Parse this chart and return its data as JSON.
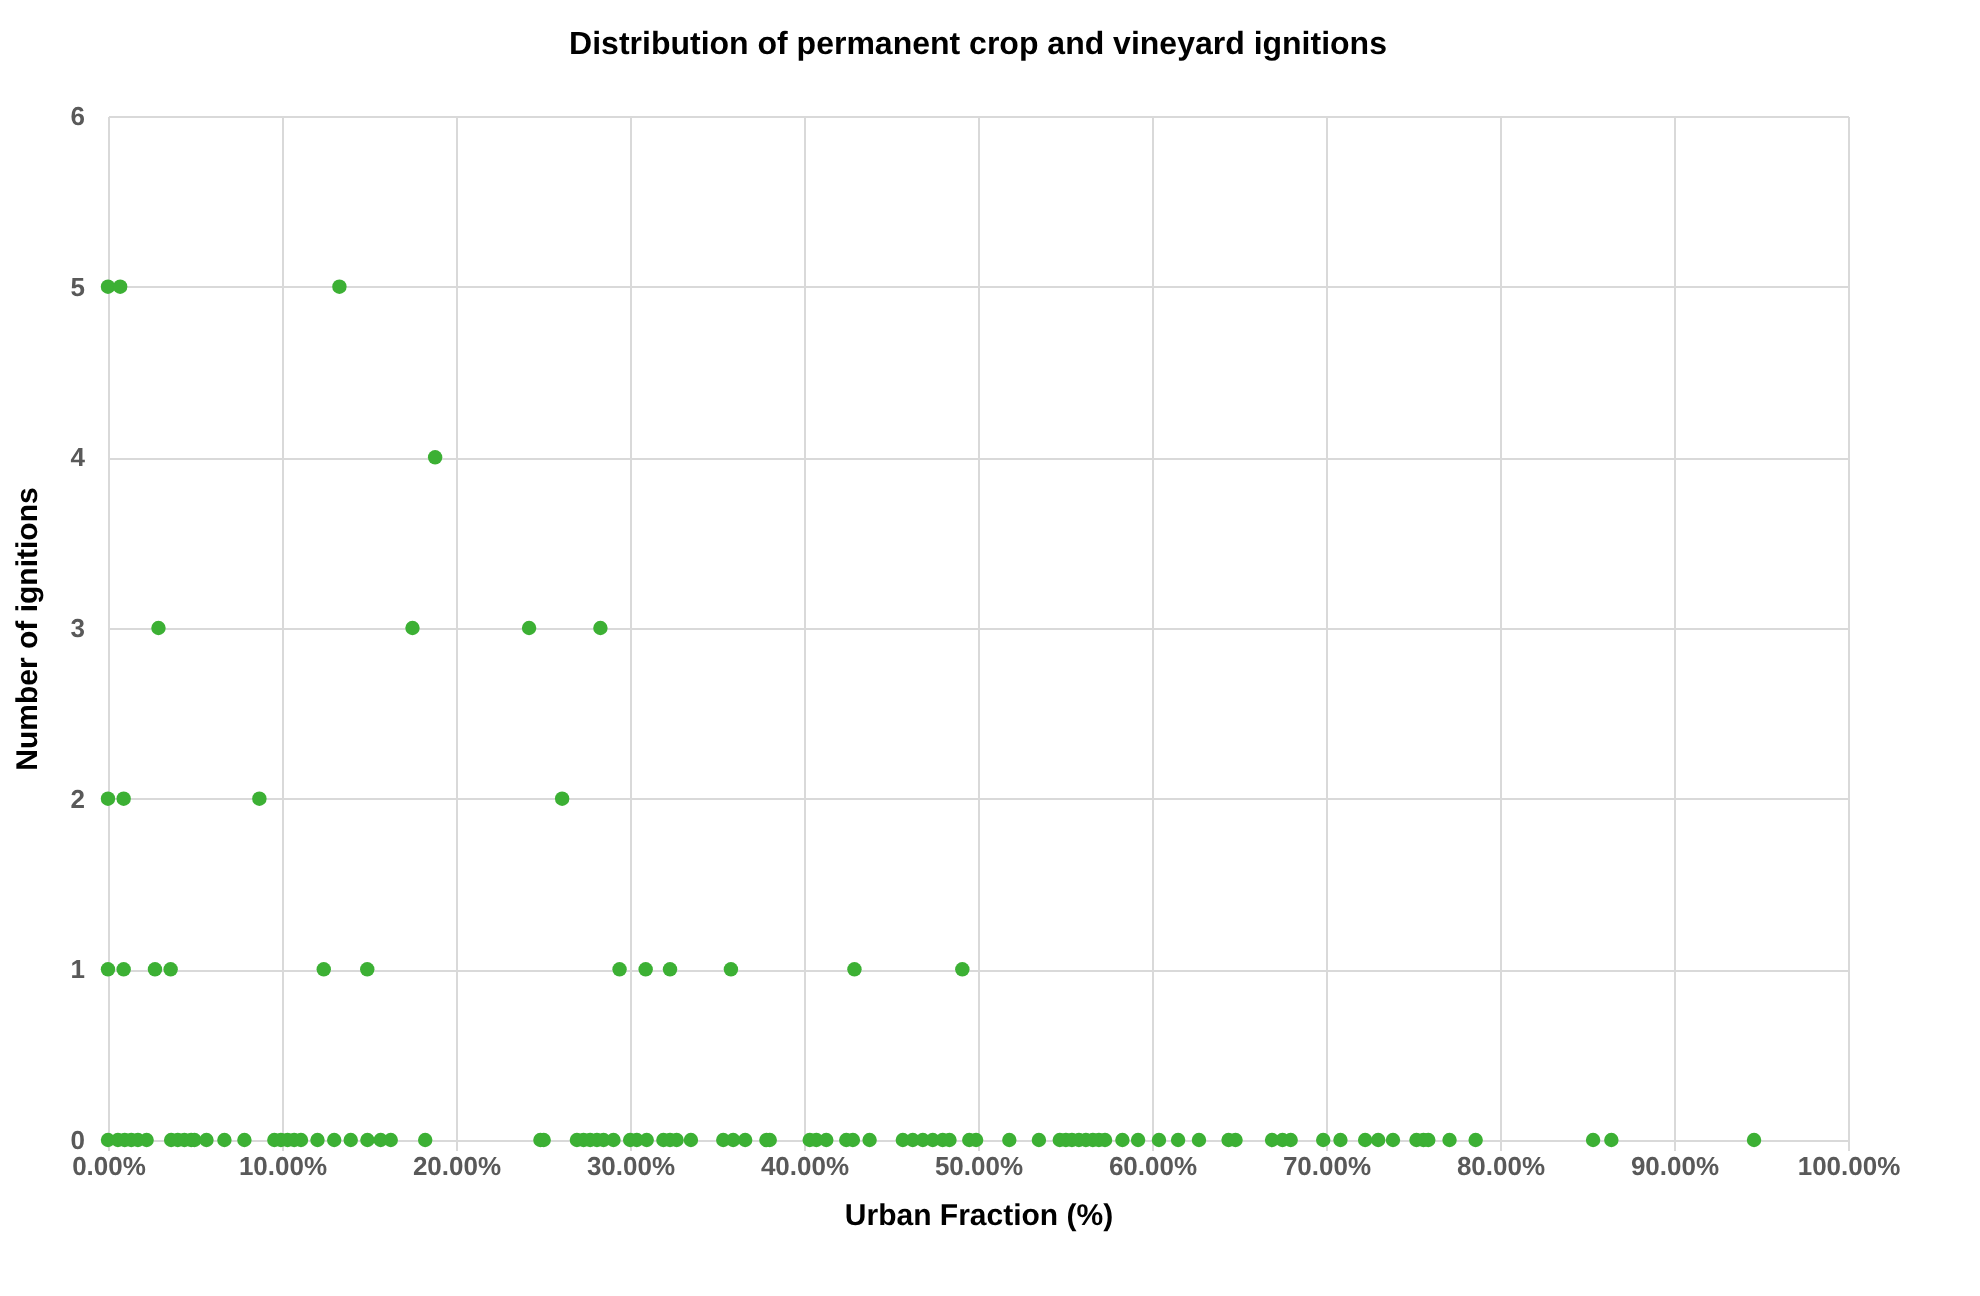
{
  "chart_data": {
    "type": "scatter",
    "title": "Distribution of permanent crop and vineyard ignitions",
    "xlabel": "Urban Fraction (%)",
    "ylabel": "Number of ignitions",
    "series": [
      {
        "color": "#3cb034",
        "x": [
          0.0,
          0.7,
          13.3,
          18.8,
          2.9,
          17.5,
          24.2,
          28.3,
          0.0,
          0.9,
          8.7,
          26.1,
          0.0,
          0.9,
          2.7,
          3.6,
          12.4,
          14.9,
          29.4,
          30.9,
          32.3,
          35.8,
          42.9,
          49.1,
          0.0,
          0.57,
          0.96,
          1.34,
          1.72,
          2.22,
          3.63,
          4.01,
          4.39,
          4.78,
          4.97,
          5.66,
          6.69,
          7.84,
          9.56,
          9.94,
          10.32,
          10.7,
          11.09,
          12.04,
          13.0,
          13.95,
          14.91,
          15.67,
          16.25,
          18.23,
          24.85,
          25.04,
          26.95,
          27.33,
          27.71,
          28.1,
          28.48,
          29.05,
          30.01,
          30.39,
          30.96,
          31.92,
          32.3,
          32.68,
          33.5,
          35.36,
          35.93,
          36.62,
          37.84,
          38.03,
          40.33,
          40.71,
          41.28,
          42.43,
          42.81,
          43.77,
          45.68,
          46.25,
          46.83,
          47.4,
          47.97,
          48.36,
          49.5,
          49.89,
          51.8,
          53.5,
          54.7,
          55.05,
          55.4,
          55.8,
          56.2,
          56.6,
          56.95,
          57.3,
          58.3,
          59.2,
          60.4,
          61.5,
          62.7,
          64.4,
          64.8,
          66.9,
          67.5,
          67.97,
          69.84,
          70.83,
          72.25,
          73.0,
          73.85,
          75.2,
          75.6,
          75.88,
          77.1,
          78.6,
          85.35,
          86.4,
          94.6
        ],
        "values": [
          5,
          5,
          5,
          4,
          3,
          3,
          3,
          3,
          2,
          2,
          2,
          2,
          1,
          1,
          1,
          1,
          1,
          1,
          1,
          1,
          1,
          1,
          1,
          1,
          0,
          0,
          0,
          0,
          0,
          0,
          0,
          0,
          0,
          0,
          0,
          0,
          0,
          0,
          0,
          0,
          0,
          0,
          0,
          0,
          0,
          0,
          0,
          0,
          0,
          0,
          0,
          0,
          0,
          0,
          0,
          0,
          0,
          0,
          0,
          0,
          0,
          0,
          0,
          0,
          0,
          0,
          0,
          0,
          0,
          0,
          0,
          0,
          0,
          0,
          0,
          0,
          0,
          0,
          0,
          0,
          0,
          0,
          0,
          0,
          0,
          0,
          0,
          0,
          0,
          0,
          0,
          0,
          0,
          0,
          0,
          0,
          0,
          0,
          0,
          0,
          0,
          0,
          0,
          0,
          0,
          0,
          0,
          0,
          0,
          0,
          0,
          0,
          0,
          0,
          0,
          0,
          0
        ]
      }
    ],
    "xlim": [
      0,
      100
    ],
    "xticks": [
      {
        "value": 0,
        "label": "0.00%"
      },
      {
        "value": 10,
        "label": "10.00%"
      },
      {
        "value": 20,
        "label": "20.00%"
      },
      {
        "value": 30,
        "label": "30.00%"
      },
      {
        "value": 40,
        "label": "40.00%"
      },
      {
        "value": 50,
        "label": "50.00%"
      },
      {
        "value": 60,
        "label": "60.00%"
      },
      {
        "value": 70,
        "label": "70.00%"
      },
      {
        "value": 80,
        "label": "80.00%"
      },
      {
        "value": 90,
        "label": "90.00%"
      },
      {
        "value": 100,
        "label": "100.00%"
      }
    ],
    "ylim": [
      0,
      6
    ],
    "yticks": [
      0,
      1,
      2,
      3,
      4,
      5,
      6
    ],
    "grid": true,
    "marker": "circle"
  }
}
